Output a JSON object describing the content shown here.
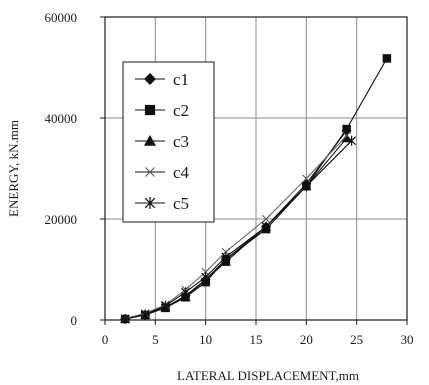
{
  "chart_data": {
    "type": "line",
    "title": "",
    "xlabel": "LATERAL DISPLACEMENT,mm",
    "ylabel": "ENERGY, kN.mm",
    "xlim": [
      0,
      30
    ],
    "ylim": [
      0,
      60000
    ],
    "x_ticks": [
      "0",
      "5",
      "10",
      "15",
      "20",
      "25",
      "30"
    ],
    "y_ticks": [
      "0",
      "20000",
      "40000",
      "60000"
    ],
    "grid": true,
    "legend_position": "upper-left",
    "series": [
      {
        "name": "c1",
        "marker": "diamond",
        "x": [
          2,
          4,
          6,
          8,
          10,
          12,
          16,
          20,
          24
        ],
        "y": [
          200,
          1000,
          2500,
          4800,
          8000,
          12000,
          18500,
          27000,
          37500
        ]
      },
      {
        "name": "c2",
        "marker": "square",
        "x": [
          2,
          4,
          6,
          8,
          10,
          12,
          16,
          20,
          24,
          28
        ],
        "y": [
          200,
          1000,
          2400,
          4500,
          7500,
          12000,
          18000,
          26500,
          37800,
          51800
        ]
      },
      {
        "name": "c3",
        "marker": "triangle",
        "x": [
          2,
          4,
          6,
          8,
          10,
          12,
          16,
          20,
          24
        ],
        "y": [
          200,
          1000,
          2500,
          4500,
          8000,
          11500,
          18500,
          26500,
          36000
        ]
      },
      {
        "name": "c4",
        "marker": "x",
        "x": [
          2,
          4,
          6,
          8,
          10,
          12,
          16,
          20,
          24
        ],
        "y": [
          300,
          1300,
          3000,
          6000,
          9500,
          13500,
          20000,
          28000,
          36500
        ]
      },
      {
        "name": "c5",
        "marker": "star",
        "x": [
          2,
          4,
          6,
          8,
          10,
          12,
          16,
          20,
          24.5
        ],
        "y": [
          200,
          1100,
          2800,
          5500,
          8500,
          12500,
          18500,
          26500,
          35500
        ]
      }
    ]
  }
}
